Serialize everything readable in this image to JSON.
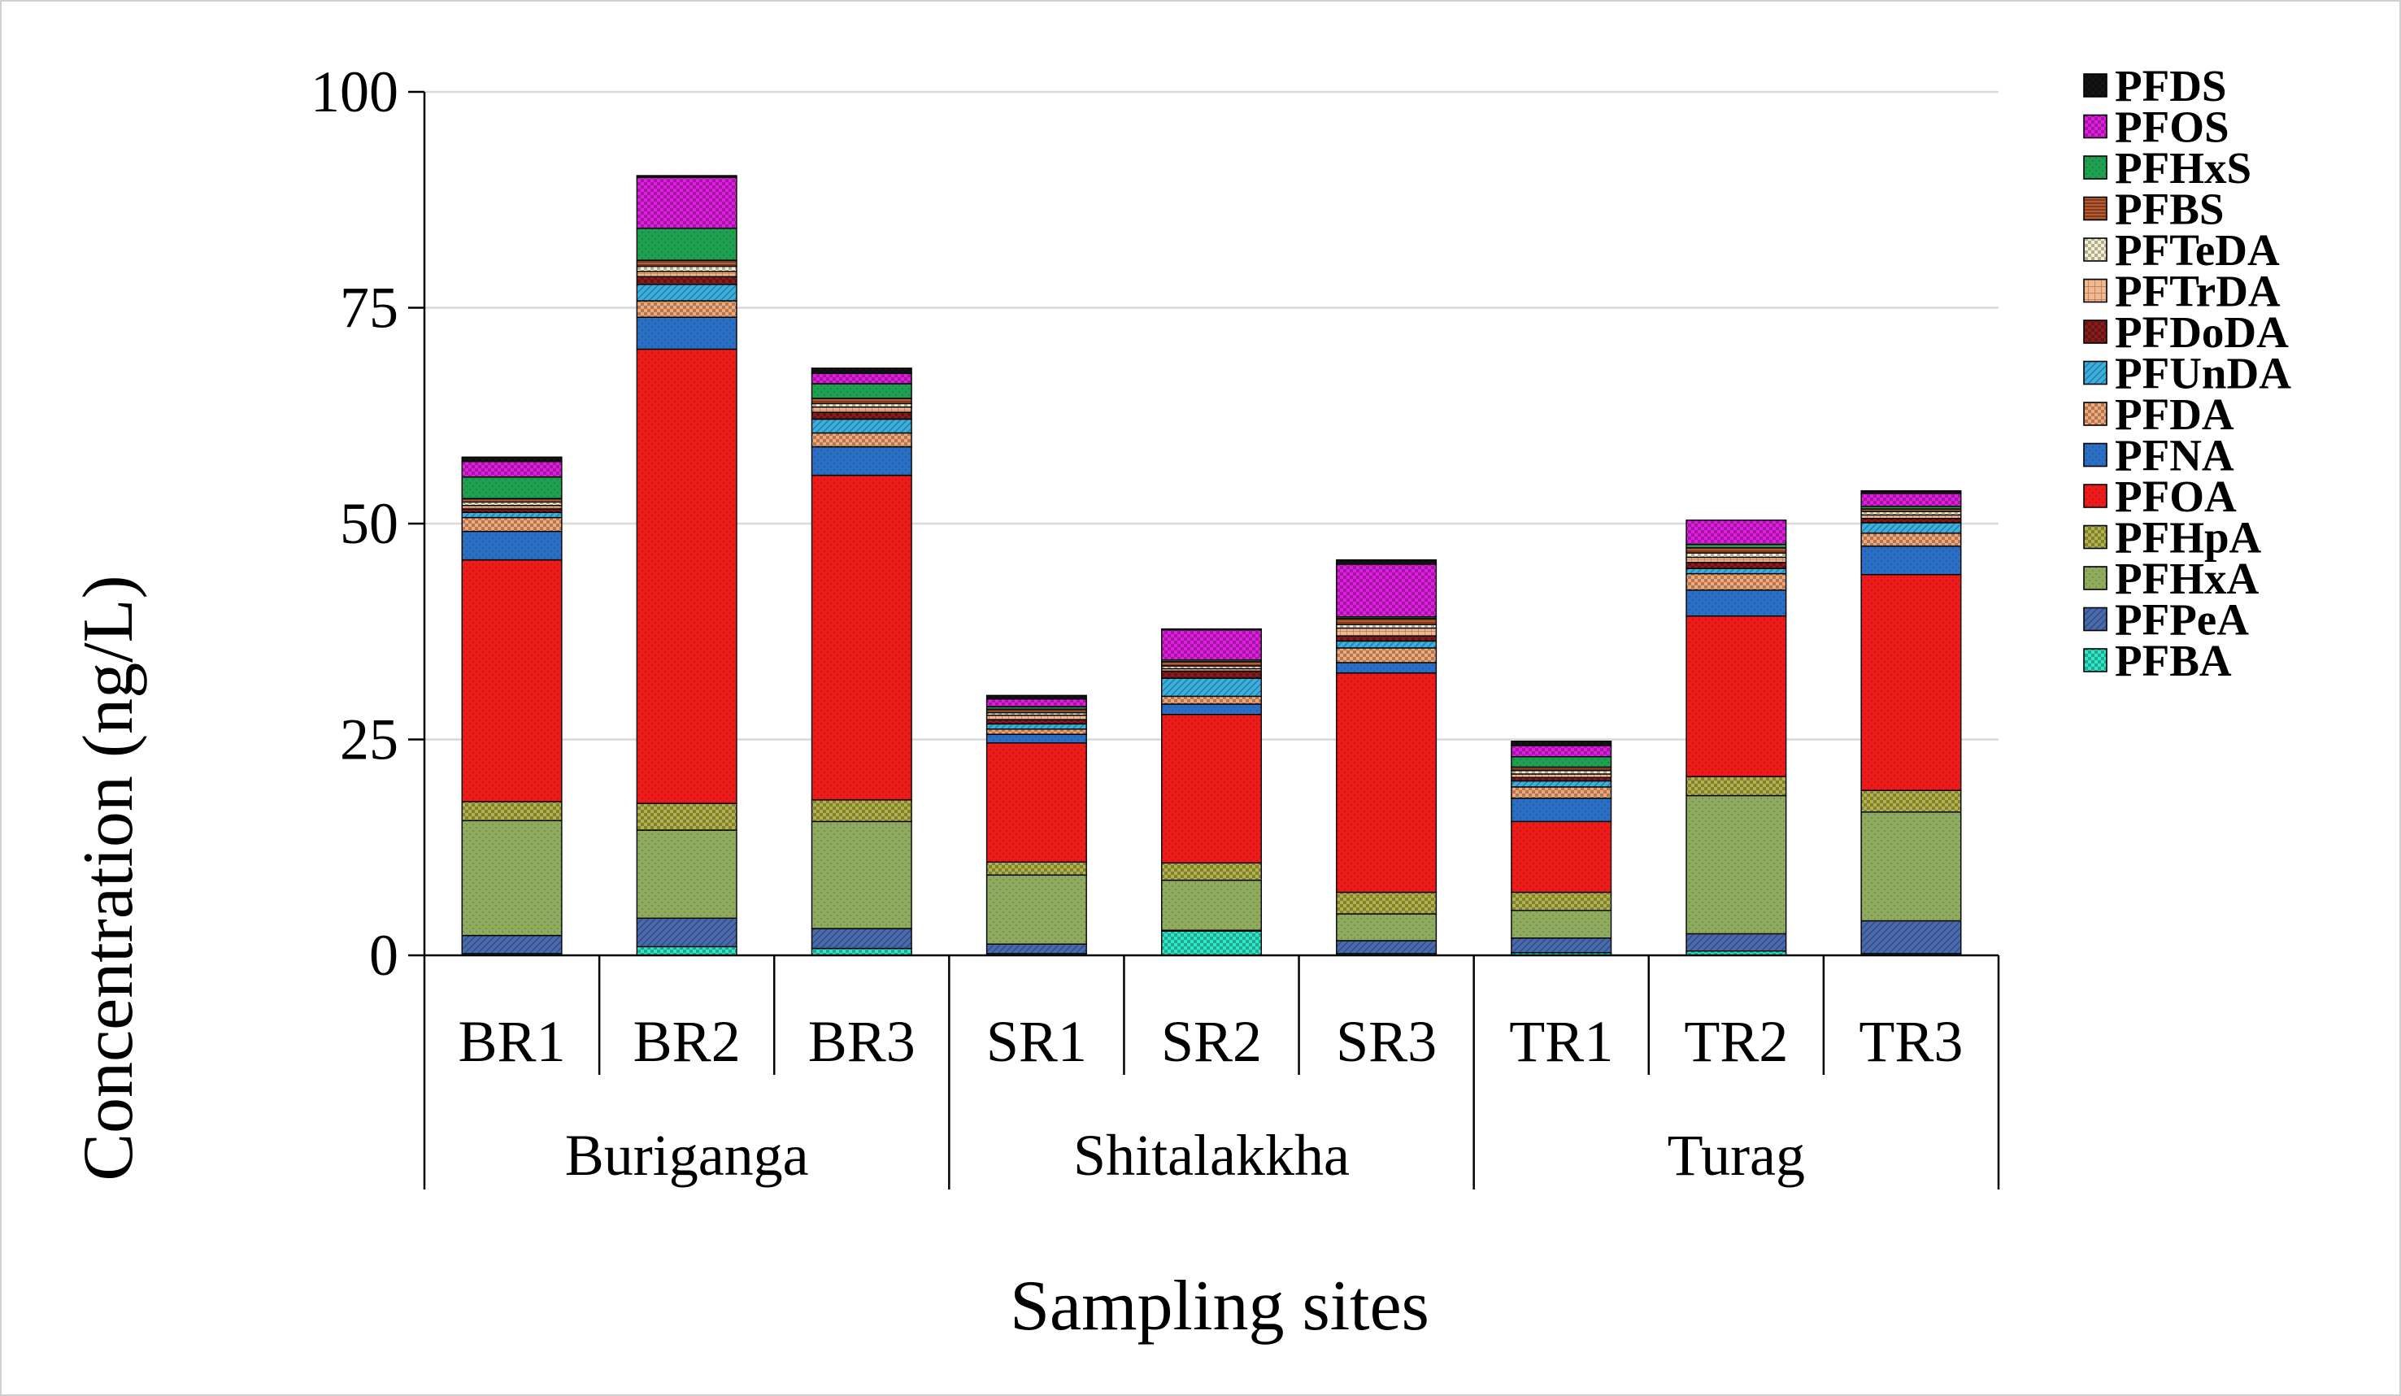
{
  "chart_data": {
    "type": "bar",
    "stacked": true,
    "xlabel": "Sampling sites",
    "ylabel": "Concentration (ng/L)",
    "ylim": [
      0,
      100
    ],
    "yticks": [
      0,
      25,
      50,
      75,
      100
    ],
    "grid": "horizontal",
    "legend_position": "right",
    "categories": [
      "BR1",
      "BR2",
      "BR3",
      "SR1",
      "SR2",
      "SR3",
      "TR1",
      "TR2",
      "TR3"
    ],
    "groups": [
      {
        "label": "Buriganga",
        "categories": [
          "BR1",
          "BR2",
          "BR3"
        ]
      },
      {
        "label": "Shitalakkha",
        "categories": [
          "SR1",
          "SR2",
          "SR3"
        ]
      },
      {
        "label": "Turag",
        "categories": [
          "TR1",
          "TR2",
          "TR3"
        ]
      }
    ],
    "series": [
      {
        "name": "PFBA",
        "color": "#2ee8c8",
        "pattern": "checker",
        "values": [
          0.2,
          1.0,
          0.8,
          0.2,
          2.8,
          0.2,
          0.3,
          0.5,
          0.2
        ]
      },
      {
        "name": "PFPeA",
        "color": "#4a6ab0",
        "pattern": "diag",
        "values": [
          2.1,
          3.3,
          2.3,
          1.1,
          0.1,
          1.5,
          1.7,
          2.0,
          3.8
        ]
      },
      {
        "name": "PFHxA",
        "color": "#8fab5e",
        "pattern": "dots",
        "values": [
          13.3,
          10.2,
          12.4,
          8.0,
          5.8,
          3.1,
          3.2,
          16.0,
          12.6
        ]
      },
      {
        "name": "PFHpA",
        "color": "#b3b34a",
        "pattern": "checker",
        "values": [
          2.2,
          3.1,
          2.5,
          1.5,
          2.0,
          2.5,
          2.1,
          2.2,
          2.5
        ]
      },
      {
        "name": "PFOA",
        "color": "#ee1b1b",
        "pattern": "dots",
        "values": [
          28.0,
          52.6,
          37.6,
          13.8,
          17.2,
          25.4,
          8.2,
          18.6,
          25.0
        ]
      },
      {
        "name": "PFNA",
        "color": "#2a6fc4",
        "pattern": "dots",
        "values": [
          3.3,
          3.7,
          3.3,
          1.0,
          1.2,
          1.2,
          2.7,
          3.0,
          3.3
        ]
      },
      {
        "name": "PFDA",
        "color": "#f2a878",
        "pattern": "checker",
        "values": [
          1.6,
          1.9,
          1.6,
          0.6,
          0.9,
          1.7,
          1.3,
          1.9,
          1.5
        ]
      },
      {
        "name": "PFUnDA",
        "color": "#3ab0e0",
        "pattern": "diag",
        "values": [
          0.6,
          1.9,
          1.6,
          0.6,
          2.1,
          0.8,
          0.7,
          0.6,
          1.2
        ]
      },
      {
        "name": "PFDoDA",
        "color": "#8a1c1c",
        "pattern": "checker",
        "values": [
          0.4,
          0.9,
          0.8,
          0.5,
          0.8,
          0.6,
          0.4,
          0.7,
          0.5
        ]
      },
      {
        "name": "PFTrDA",
        "color": "#f0b890",
        "pattern": "grid",
        "values": [
          0.4,
          0.6,
          0.6,
          0.5,
          0.3,
          0.9,
          0.4,
          0.6,
          0.4
        ]
      },
      {
        "name": "PFTeDA",
        "color": "#f5f0d0",
        "pattern": "checker",
        "values": [
          0.4,
          0.6,
          0.4,
          0.3,
          0.3,
          0.4,
          0.4,
          0.5,
          0.4
        ]
      },
      {
        "name": "PFBS",
        "color": "#b85a34",
        "pattern": "hlines",
        "values": [
          0.4,
          0.7,
          0.6,
          0.4,
          0.5,
          0.7,
          0.4,
          0.6,
          0.3
        ]
      },
      {
        "name": "PFHxS",
        "color": "#1ea050",
        "pattern": "dots",
        "values": [
          2.5,
          3.7,
          1.7,
          0.3,
          0.2,
          0.2,
          1.2,
          0.4,
          0.3
        ]
      },
      {
        "name": "PFOS",
        "color": "#e01ee0",
        "pattern": "checker",
        "values": [
          1.8,
          5.9,
          1.2,
          0.9,
          3.5,
          6.1,
          1.3,
          2.8,
          1.5
        ]
      },
      {
        "name": "PFDS",
        "color": "#141414",
        "pattern": "checker",
        "values": [
          0.5,
          0.2,
          0.6,
          0.4,
          0.1,
          0.5,
          0.5,
          0.0,
          0.3
        ]
      }
    ]
  }
}
